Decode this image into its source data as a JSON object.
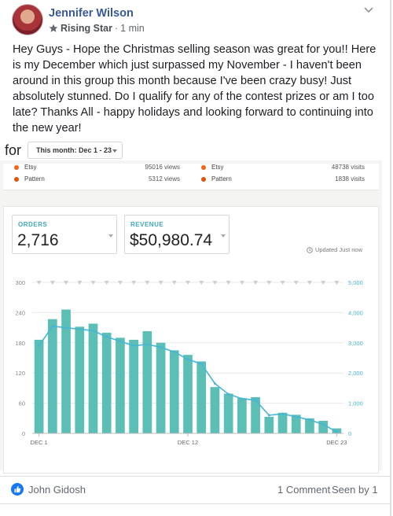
{
  "post": {
    "author": "Jennifer Wilson",
    "badge": "Rising Star",
    "time": "1 min",
    "separator": "·",
    "text": "Hey Guys - Hope the Christmas selling season was great for you!! Here is my December which just surpassed my November - I haven't been around in this group this month because I've been crazy busy! Just absolutely stunned. Do I qualify for any of the contest prizes or am I too late? Thanks All - happy holidays and looking forward to continuing into the new year!"
  },
  "screenshot": {
    "for_label": "for",
    "period": "This month: Dec 1 - 23",
    "sources_left": [
      {
        "name": "Etsy",
        "value": "95016 views",
        "color": "#f1641e"
      },
      {
        "name": "Pattern",
        "value": "5312 views",
        "color": "#e0520f"
      }
    ],
    "sources_right": [
      {
        "name": "Etsy",
        "value": "48738 visits",
        "color": "#f1641e"
      },
      {
        "name": "Pattern",
        "value": "1838 visits",
        "color": "#e0520f"
      }
    ],
    "orders": {
      "label": "ORDERS",
      "value": "2,716"
    },
    "revenue": {
      "label": "REVENUE",
      "value": "$50,980.74"
    },
    "updated": "Updated Just now"
  },
  "chart_data": {
    "type": "bar",
    "categories": [
      "DEC 1",
      "",
      "",
      "",
      "",
      "",
      "",
      "",
      "",
      "",
      "",
      "DEC 12",
      "",
      "",
      "",
      "",
      "",
      "",
      "",
      "",
      "",
      "",
      "DEC 23"
    ],
    "x_tick_labels": [
      "DEC 1",
      "DEC 12",
      "DEC 23"
    ],
    "series": [
      {
        "values": [
          186,
          227,
          246,
          212,
          218,
          200,
          190,
          186,
          203,
          180,
          165,
          156,
          143,
          92,
          79,
          70,
          72,
          33,
          41,
          37,
          30,
          25,
          10
        ]
      },
      {
        "values": [
          2900,
          3550,
          3500,
          3450,
          3400,
          3200,
          3050,
          2900,
          2950,
          2850,
          2700,
          2450,
          2300,
          1650,
          1300,
          1150,
          1100,
          600,
          650,
          550,
          450,
          300,
          50
        ]
      }
    ],
    "y_left_ticks": [
      0,
      60,
      120,
      180,
      240,
      300
    ],
    "y_right_ticks": [
      "0",
      "1,000",
      "2,000",
      "3,000",
      "4,000",
      "5,000"
    ],
    "ylim_left": [
      0,
      300
    ],
    "ylim_right": [
      0,
      5000
    ],
    "colors": {
      "bars": "#5bbfb5",
      "line": "#47b5d4",
      "grid": "#e8e8e8",
      "axis_right": "#47b5d4"
    }
  },
  "footer": {
    "liker": "John Gidosh",
    "comments": "1 Comment",
    "seen": "Seen by 1"
  }
}
